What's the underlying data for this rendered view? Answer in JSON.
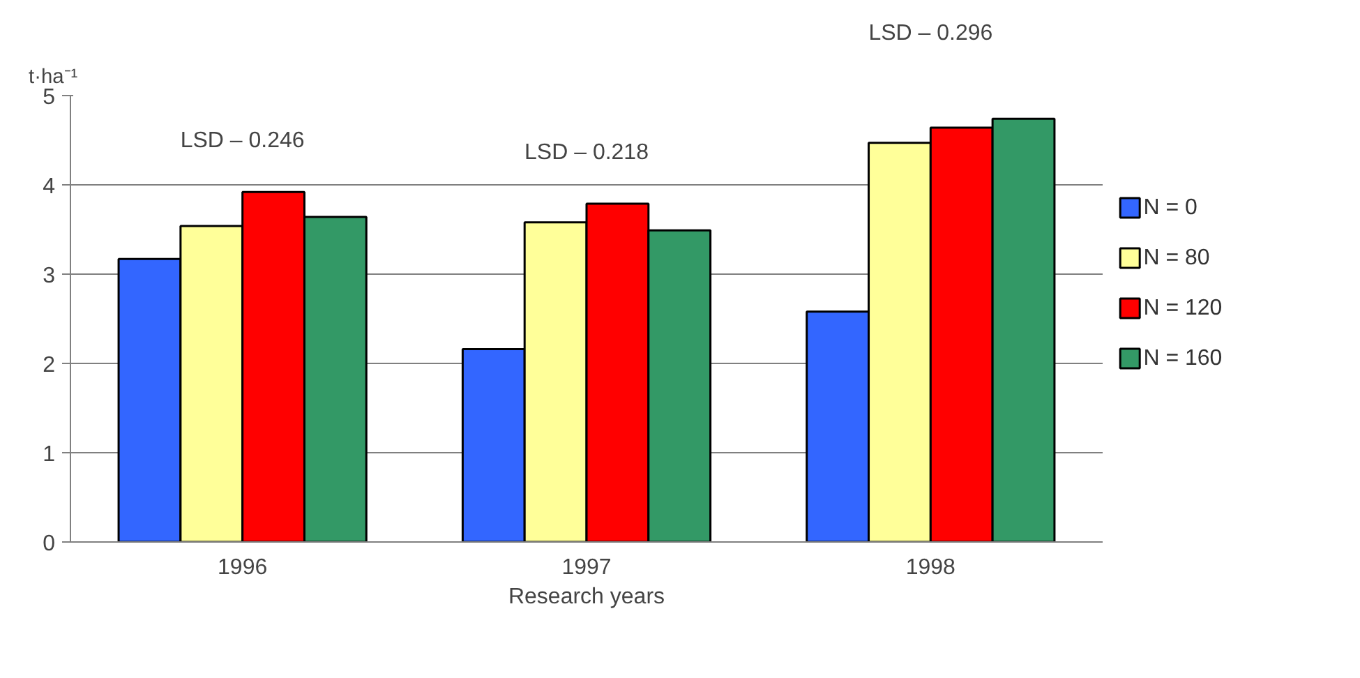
{
  "chart_data": {
    "type": "bar",
    "xlabel": "Research years",
    "ylabel": "t·ha⁻¹",
    "categories": [
      "1996",
      "1997",
      "1998"
    ],
    "series": [
      {
        "name": "N = 0",
        "color": "#3366ff",
        "values": [
          3.17,
          2.16,
          2.58
        ]
      },
      {
        "name": "N = 80",
        "color": "#ffff99",
        "values": [
          3.54,
          3.58,
          4.47
        ]
      },
      {
        "name": "N = 120",
        "color": "#ff0000",
        "values": [
          3.92,
          3.79,
          4.64
        ]
      },
      {
        "name": "N = 160",
        "color": "#339966",
        "values": [
          3.64,
          3.49,
          4.74
        ]
      }
    ],
    "annotations": [
      "LSD – 0.246",
      "LSD – 0.218",
      "LSD – 0.296"
    ],
    "ylim": [
      0,
      5
    ],
    "yticks": [
      0,
      1,
      2,
      3,
      4,
      5
    ],
    "grid": "y",
    "legend": "right"
  }
}
